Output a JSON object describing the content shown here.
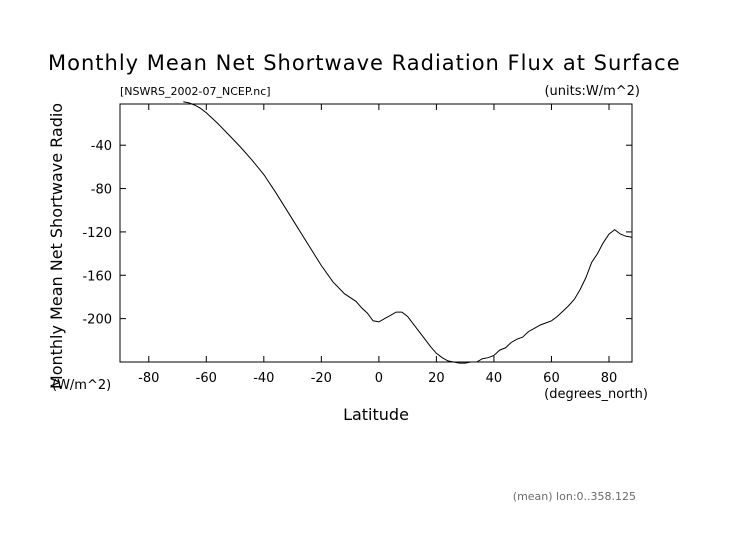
{
  "chart_data": {
    "type": "line",
    "title": "Monthly Mean Net Shortwave Radiation Flux at Surface",
    "subtitle_left": "[NSWRS_2002-07_NCEP.nc]",
    "subtitle_right": "(units:W/m^2)",
    "ylabel": "Monthly Mean Net Shortwave Radio",
    "ylabel_units": "(W/m^2)",
    "xlabel": "Latitude",
    "xlabel_units": "(degrees_north)",
    "footer": "(mean) lon:0..358.125",
    "xlim": [
      -90,
      88
    ],
    "ylim": [
      -240,
      -2
    ],
    "x_ticks": [
      -80,
      -60,
      -40,
      -20,
      0,
      20,
      40,
      60,
      80
    ],
    "y_ticks": [
      -40,
      -80,
      -120,
      -160,
      -200
    ],
    "grid": false,
    "series": [
      {
        "x": [
          -68,
          -66,
          -64,
          -62,
          -60,
          -56,
          -52,
          -48,
          -44,
          -40,
          -36,
          -32,
          -28,
          -24,
          -20,
          -16,
          -12,
          -8,
          -6,
          -4,
          -2,
          0,
          2,
          4,
          6,
          8,
          10,
          12,
          14,
          16,
          18,
          20,
          22,
          24,
          26,
          28,
          30,
          32,
          34,
          36,
          38,
          40,
          42,
          44,
          46,
          48,
          50,
          52,
          54,
          56,
          58,
          60,
          62,
          64,
          66,
          68,
          70,
          72,
          74,
          76,
          78,
          80,
          82,
          84,
          86,
          88
        ],
        "y": [
          0,
          -1,
          -3,
          -6,
          -10,
          -20,
          -31,
          -42,
          -54,
          -67,
          -83,
          -100,
          -117,
          -134,
          -151,
          -166,
          -177,
          -184,
          -190,
          -195,
          -202,
          -203,
          -200,
          -197,
          -194,
          -194,
          -198,
          -205,
          -212,
          -219,
          -226,
          -232,
          -236,
          -239,
          -240,
          -241,
          -241,
          -240,
          -240,
          -237,
          -236,
          -234,
          -229,
          -227,
          -222,
          -219,
          -217,
          -212,
          -209,
          -206,
          -204,
          -202,
          -198,
          -193,
          -188,
          -182,
          -173,
          -162,
          -148,
          -140,
          -130,
          -122,
          -118,
          -122,
          -124,
          -125
        ]
      }
    ]
  }
}
